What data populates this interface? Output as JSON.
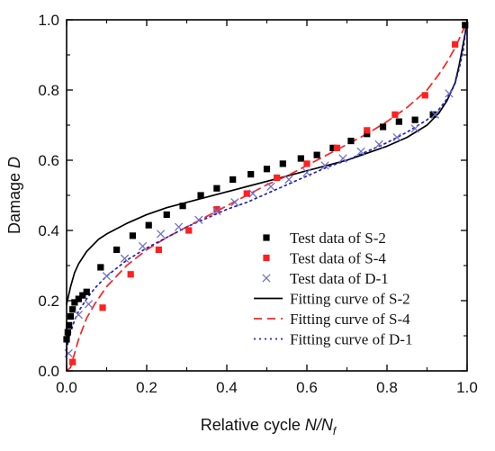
{
  "chart_data": {
    "type": "scatter",
    "title": "",
    "xlabel": "Relative cycle N/N",
    "xlabel_sub": "f",
    "ylabel": "Damage D",
    "xlim": [
      0.0,
      1.0
    ],
    "ylim": [
      0.0,
      1.0
    ],
    "xticks": [
      "0.0",
      "0.2",
      "0.4",
      "0.6",
      "0.8",
      "1.0"
    ],
    "yticks": [
      "0.0",
      "0.2",
      "0.4",
      "0.6",
      "0.8",
      "1.0"
    ],
    "grid": false,
    "legend_position": "bottom-right",
    "series": [
      {
        "name": "Test data of S-2",
        "kind": "scatter",
        "marker": "square",
        "color": "#000000",
        "x": [
          0.0,
          0.003,
          0.006,
          0.01,
          0.015,
          0.02,
          0.03,
          0.04,
          0.05,
          0.085,
          0.125,
          0.165,
          0.205,
          0.25,
          0.29,
          0.335,
          0.375,
          0.415,
          0.46,
          0.5,
          0.54,
          0.585,
          0.625,
          0.665,
          0.71,
          0.75,
          0.79,
          0.83,
          0.87,
          0.915,
          0.995
        ],
        "y": [
          0.09,
          0.11,
          0.13,
          0.155,
          0.175,
          0.195,
          0.205,
          0.215,
          0.225,
          0.295,
          0.345,
          0.385,
          0.415,
          0.445,
          0.47,
          0.5,
          0.52,
          0.545,
          0.56,
          0.575,
          0.59,
          0.605,
          0.615,
          0.635,
          0.655,
          0.675,
          0.695,
          0.71,
          0.715,
          0.73,
          0.985
        ]
      },
      {
        "name": "Test data of S-4",
        "kind": "scatter",
        "marker": "square",
        "color": "#ff2020",
        "x": [
          0.015,
          0.09,
          0.16,
          0.23,
          0.305,
          0.375,
          0.45,
          0.525,
          0.6,
          0.675,
          0.75,
          0.82,
          0.895,
          0.97
        ],
        "y": [
          0.025,
          0.18,
          0.275,
          0.345,
          0.4,
          0.46,
          0.505,
          0.55,
          0.59,
          0.635,
          0.685,
          0.73,
          0.785,
          0.93
        ]
      },
      {
        "name": "Test data of D-1",
        "kind": "scatter",
        "marker": "x",
        "color": "#7070cc",
        "x": [
          0.005,
          0.03,
          0.055,
          0.1,
          0.145,
          0.19,
          0.235,
          0.28,
          0.33,
          0.375,
          0.42,
          0.465,
          0.51,
          0.555,
          0.6,
          0.645,
          0.69,
          0.735,
          0.78,
          0.825,
          0.87,
          0.92,
          0.955
        ],
        "y": [
          0.05,
          0.16,
          0.19,
          0.27,
          0.32,
          0.355,
          0.39,
          0.41,
          0.43,
          0.455,
          0.48,
          0.505,
          0.525,
          0.545,
          0.565,
          0.585,
          0.605,
          0.625,
          0.645,
          0.665,
          0.69,
          0.73,
          0.79
        ]
      },
      {
        "name": "Fitting curve of S-2",
        "kind": "line",
        "dash": "solid",
        "color": "#000000",
        "x": [
          0.0,
          0.002,
          0.005,
          0.01,
          0.02,
          0.03,
          0.05,
          0.08,
          0.1,
          0.15,
          0.2,
          0.25,
          0.3,
          0.35,
          0.4,
          0.45,
          0.5,
          0.55,
          0.6,
          0.65,
          0.7,
          0.75,
          0.8,
          0.85,
          0.9,
          0.93,
          0.95,
          0.97,
          0.98,
          0.99,
          0.995,
          1.0
        ],
        "y": [
          0.19,
          0.2,
          0.215,
          0.24,
          0.28,
          0.305,
          0.34,
          0.375,
          0.39,
          0.42,
          0.445,
          0.465,
          0.48,
          0.495,
          0.51,
          0.525,
          0.54,
          0.555,
          0.57,
          0.585,
          0.6,
          0.62,
          0.64,
          0.665,
          0.7,
          0.735,
          0.77,
          0.82,
          0.87,
          0.93,
          0.96,
          1.0
        ]
      },
      {
        "name": "Fitting curve of S-4",
        "kind": "line",
        "dash": "dashed",
        "color": "#ff2020",
        "x": [
          0.0,
          0.01,
          0.02,
          0.03,
          0.05,
          0.07,
          0.1,
          0.15,
          0.2,
          0.25,
          0.3,
          0.35,
          0.4,
          0.45,
          0.5,
          0.55,
          0.6,
          0.65,
          0.7,
          0.75,
          0.8,
          0.85,
          0.9,
          0.93,
          0.95,
          0.97,
          0.98,
          0.99,
          1.0
        ],
        "y": [
          0.0,
          0.01,
          0.05,
          0.09,
          0.15,
          0.19,
          0.24,
          0.3,
          0.345,
          0.38,
          0.41,
          0.44,
          0.47,
          0.5,
          0.53,
          0.555,
          0.585,
          0.615,
          0.645,
          0.675,
          0.71,
          0.75,
          0.8,
          0.845,
          0.88,
          0.92,
          0.945,
          0.97,
          1.0
        ]
      },
      {
        "name": "Fitting curve of D-1",
        "kind": "line",
        "dash": "dotted",
        "color": "#2020bb",
        "x": [
          0.0,
          0.005,
          0.01,
          0.02,
          0.03,
          0.05,
          0.07,
          0.1,
          0.15,
          0.2,
          0.25,
          0.3,
          0.35,
          0.4,
          0.45,
          0.5,
          0.55,
          0.6,
          0.65,
          0.7,
          0.75,
          0.8,
          0.85,
          0.9,
          0.93,
          0.95,
          0.97,
          0.98,
          0.99,
          1.0
        ],
        "y": [
          0.06,
          0.09,
          0.11,
          0.145,
          0.17,
          0.205,
          0.235,
          0.27,
          0.315,
          0.35,
          0.38,
          0.41,
          0.435,
          0.46,
          0.48,
          0.505,
          0.53,
          0.555,
          0.58,
          0.6,
          0.625,
          0.65,
          0.68,
          0.715,
          0.745,
          0.775,
          0.82,
          0.86,
          0.91,
          1.0
        ]
      }
    ]
  }
}
